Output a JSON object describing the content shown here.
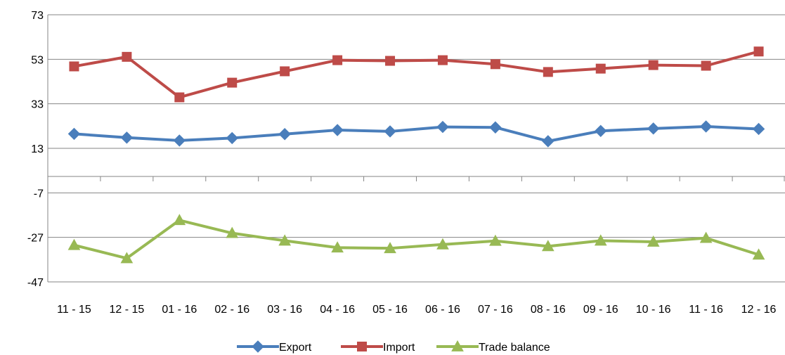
{
  "chart_data": {
    "type": "line",
    "title": "",
    "xlabel": "",
    "ylabel": "",
    "categories": [
      "11 - 15",
      "12 - 15",
      "01 - 16",
      "02 - 16",
      "03 - 16",
      "04 - 16",
      "05 - 16",
      "06 - 16",
      "07 - 16",
      "08 - 16",
      "09 - 16",
      "10 - 16",
      "11 - 16",
      "12 - 16"
    ],
    "ylim": [
      -47,
      73
    ],
    "yticks": [
      -47,
      -27,
      -7,
      13,
      33,
      53,
      73
    ],
    "ytick_labels": [
      "-47",
      "-27",
      "-7",
      "13",
      "33",
      "53",
      "73"
    ],
    "grid": true,
    "legend_position": "bottom",
    "series": [
      {
        "name": "Export",
        "color": "#4a7ebb",
        "marker": "diamond",
        "values": [
          19.5,
          17.8,
          16.5,
          17.6,
          19.4,
          21.2,
          20.6,
          22.6,
          22.4,
          16.2,
          20.8,
          21.9,
          22.8,
          21.7
        ]
      },
      {
        "name": "Import",
        "color": "#be4b48",
        "marker": "square",
        "values": [
          49.8,
          54.1,
          35.9,
          42.5,
          47.6,
          52.6,
          52.3,
          52.6,
          50.8,
          47.3,
          48.8,
          50.4,
          50.1,
          56.5
        ]
      },
      {
        "name": "Trade balance",
        "color": "#98b954",
        "marker": "triangle",
        "values": [
          -30.5,
          -36.4,
          -19.3,
          -25.1,
          -28.5,
          -31.6,
          -31.9,
          -30.2,
          -28.6,
          -31.0,
          -28.5,
          -29.0,
          -27.3,
          -34.8
        ]
      }
    ]
  }
}
